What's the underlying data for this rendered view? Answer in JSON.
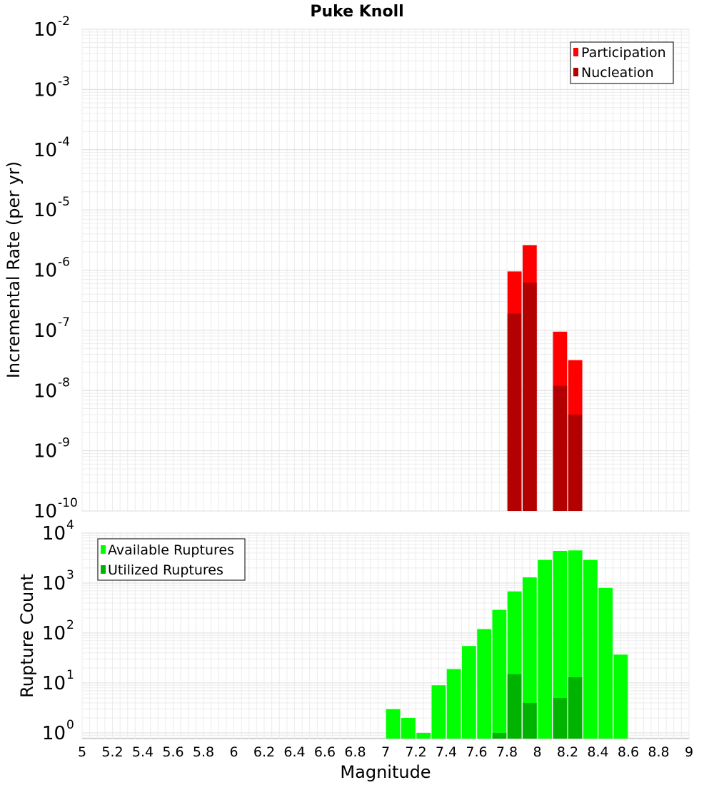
{
  "chart_data": [
    {
      "type": "bar",
      "title": "Puke Knoll",
      "ylabel": "Incremental Rate (per yr)",
      "yscale": "log",
      "ylim": [
        1e-10,
        0.01
      ],
      "ytick_labels": [
        {
          "base": "10",
          "exp": "-10"
        },
        {
          "base": "10",
          "exp": "-9"
        },
        {
          "base": "10",
          "exp": "-8"
        },
        {
          "base": "10",
          "exp": "-7"
        },
        {
          "base": "10",
          "exp": "-6"
        },
        {
          "base": "10",
          "exp": "-5"
        },
        {
          "base": "10",
          "exp": "-4"
        },
        {
          "base": "10",
          "exp": "-3"
        },
        {
          "base": "10",
          "exp": "-2"
        }
      ],
      "legend": {
        "position": "top-right"
      },
      "series": [
        {
          "name": "Participation",
          "color": "#ff0000",
          "x": [
            7.85,
            7.95,
            8.15,
            8.25
          ],
          "values": [
            9.5e-07,
            2.6e-06,
            9.5e-08,
            3.2e-08
          ]
        },
        {
          "name": "Nucleation",
          "color": "#b30000",
          "x": [
            7.85,
            7.95,
            8.15,
            8.25
          ],
          "values": [
            1.9e-07,
            6.2e-07,
            1.2e-08,
            4e-09
          ]
        }
      ]
    },
    {
      "type": "bar",
      "title": "",
      "xlabel": "Magnitude",
      "ylabel": "Rupture Count",
      "yscale": "log",
      "ylim": [
        0.77,
        10000
      ],
      "xlim": [
        5,
        9
      ],
      "xtick_labels": [
        "5",
        "5.2",
        "5.4",
        "5.6",
        "5.8",
        "6",
        "6.2",
        "6.4",
        "6.6",
        "6.8",
        "7",
        "7.2",
        "7.4",
        "7.6",
        "7.8",
        "8",
        "8.2",
        "8.4",
        "8.6",
        "8.8",
        "9"
      ],
      "ytick_labels": [
        {
          "base": "10",
          "exp": "0"
        },
        {
          "base": "10",
          "exp": "1"
        },
        {
          "base": "10",
          "exp": "2"
        },
        {
          "base": "10",
          "exp": "3"
        },
        {
          "base": "10",
          "exp": "4"
        }
      ],
      "legend": {
        "position": "top-left"
      },
      "series": [
        {
          "name": "Available Ruptures",
          "color": "#00ff00",
          "x": [
            7.05,
            7.15,
            7.25,
            7.35,
            7.45,
            7.55,
            7.65,
            7.75,
            7.85,
            7.95,
            8.05,
            8.15,
            8.25,
            8.35,
            8.45,
            8.55
          ],
          "values": [
            3,
            2,
            1,
            9,
            19,
            55,
            120,
            290,
            680,
            1300,
            2900,
            4400,
            4500,
            2900,
            800,
            37
          ]
        },
        {
          "name": "Utilized Ruptures",
          "color": "#00b300",
          "x": [
            7.75,
            7.85,
            7.95,
            8.15,
            8.25
          ],
          "values": [
            1,
            15,
            4,
            5,
            13
          ]
        }
      ]
    }
  ]
}
